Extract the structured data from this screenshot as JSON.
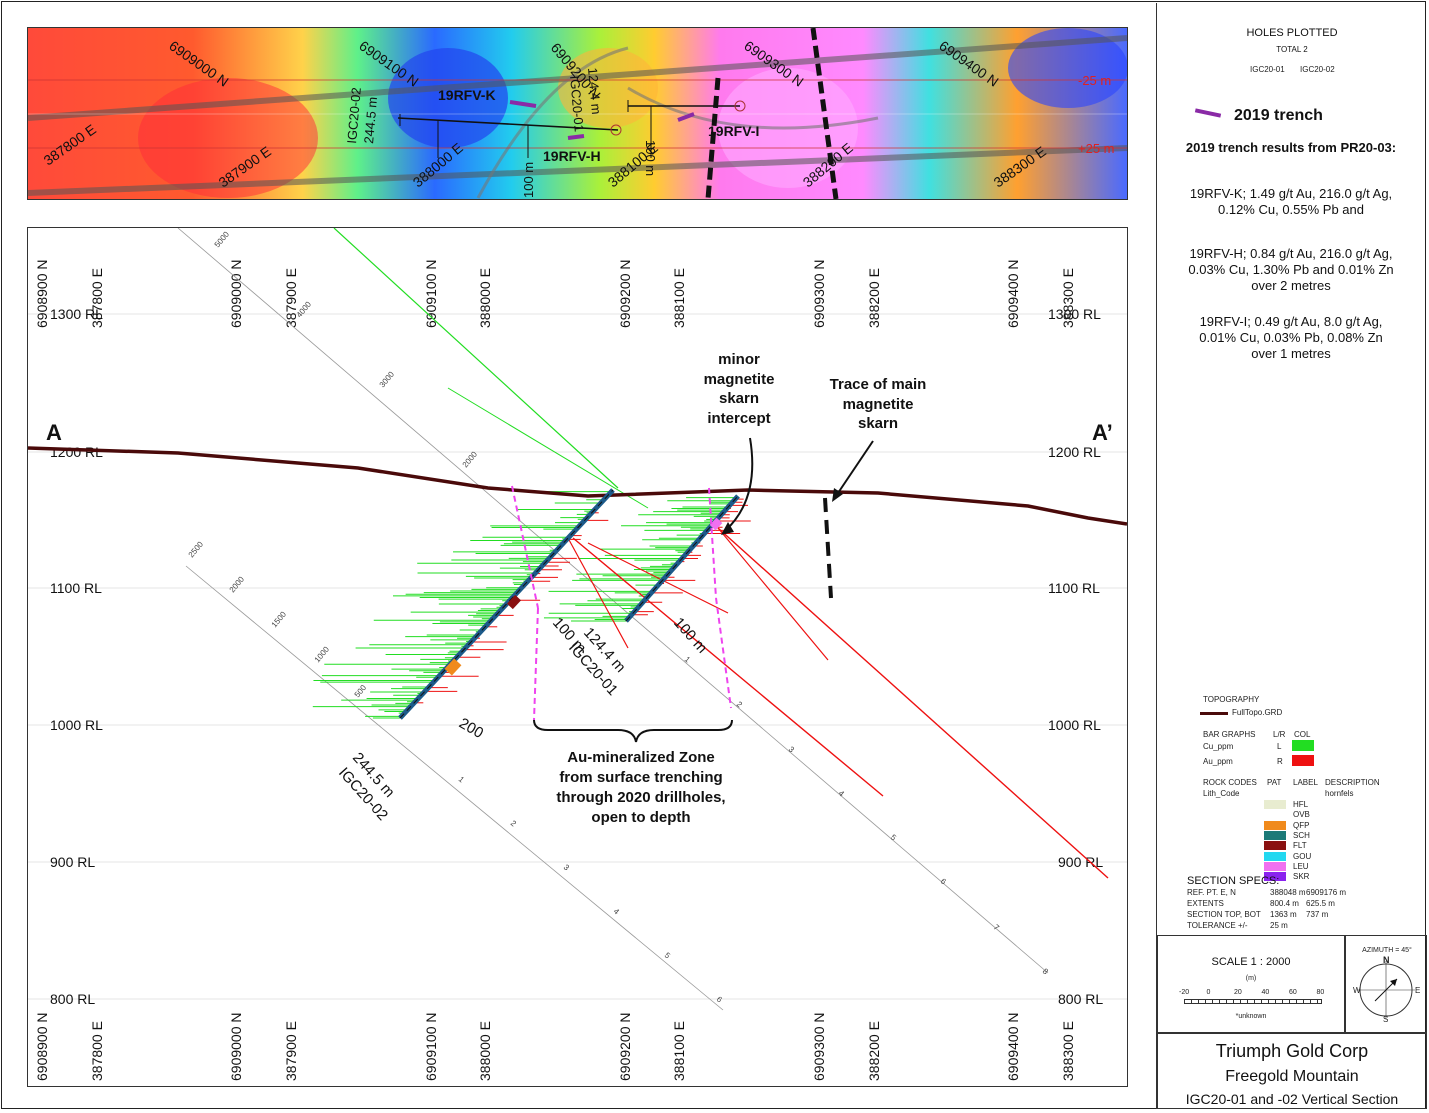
{
  "plan": {
    "northings": [
      "6909000 N",
      "6909100 N",
      "6909200 N",
      "6909300 N",
      "6909400 N"
    ],
    "eastings": [
      "387800 E",
      "387900 E",
      "388000 E",
      "388100 E",
      "388200 E",
      "388300 E"
    ],
    "rl_minus": "-25 m",
    "rl_plus": "+25 m",
    "trenches": [
      "19RFV-K",
      "19RFV-H",
      "19RFV-I"
    ],
    "hole02_name": "IGC20-02",
    "hole02_depth": "244.5 m",
    "hole01_name": "IGC20-01",
    "hole01_depth": "124.4 m",
    "hundred_m": "100 m"
  },
  "section": {
    "northings": [
      "6908900 N",
      "6909000 N",
      "6909100 N",
      "6909200 N",
      "6909300 N",
      "6909400 N"
    ],
    "eastings": [
      "387800 E",
      "387900 E",
      "388000 E",
      "388100 E",
      "388200 E",
      "388300 E"
    ],
    "rl_labels": [
      "1300 RL",
      "1200 RL",
      "1100 RL",
      "1000 RL",
      "900 RL",
      "800 RL"
    ],
    "label_a": "A",
    "label_a_prime": "A’",
    "hole01_depth": "124.4 m",
    "hole01_name": "IGC20-01",
    "hole02_depth": "244.5 m",
    "hole02_name": "IGC20-02",
    "hundred_m": "100 m",
    "depth_200": "200",
    "scale_ticks_1": [
      "5000",
      "4000",
      "3000",
      "2000"
    ],
    "scale_ticks_2": [
      "2500",
      "2000",
      "1500",
      "1000",
      "500"
    ],
    "scale_ticks_3": [
      "1",
      "2",
      "3",
      "4",
      "5",
      "6"
    ],
    "scale_ticks_4": [
      "1",
      "2",
      "3",
      "4",
      "5",
      "6",
      "7",
      "8"
    ],
    "annotation_skarn_minor": [
      "minor",
      "magnetite",
      "skarn",
      "intercept"
    ],
    "annotation_skarn_main": [
      "Trace of main",
      "magnetite",
      "skarn"
    ],
    "annotation_zone": [
      "Au-mineralized Zone",
      "from surface trenching",
      "through 2020 drillholes,",
      "open to depth"
    ]
  },
  "panel": {
    "holes_title": "HOLES PLOTTED",
    "holes_total": "TOTAL 2",
    "holes": [
      "IGC20-01",
      "IGC20-02"
    ],
    "trench_legend": "2019 trench",
    "results_title": "2019 trench results from PR20-03:",
    "result_k": "19RFV-K; 1.49 g/t Au, 216.0 g/t Ag, 0.12% Cu, 0.55% Pb and",
    "result_h": "19RFV-H; 0.84 g/t Au, 216.0 g/t Ag, 0.03% Cu, 1.30% Pb and 0.01% Zn over 2 metres",
    "result_i": "19RFV-I; 0.49 g/t Au, 8.0 g/t Ag, 0.01% Cu, 0.03% Pb, 0.08% Zn over 1 metres",
    "topo_title": "TOPOGRAPHY",
    "topo_item": "FullTopo.GRD",
    "bar_title": "BAR GRAPHS",
    "bar_lr": "L/R",
    "bar_col": "COL",
    "bar_items": [
      {
        "name": "Cu_ppm",
        "side": "L",
        "color": "#22dd22"
      },
      {
        "name": "Au_ppm",
        "side": "R",
        "color": "#ee1111"
      }
    ],
    "rock_title": "ROCK CODES",
    "rock_pat": "PAT",
    "rock_label": "LABEL",
    "rock_desc": "DESCRIPTION",
    "rock_code": "Lith_Code",
    "rock_desc_val": "hornfels",
    "rocks": [
      {
        "label": "HFL",
        "color": "#e8ecd0"
      },
      {
        "label": "OVB",
        "color": "#ffffff"
      },
      {
        "label": "QFP",
        "color": "#f08a1c"
      },
      {
        "label": "SCH",
        "color": "#1c7a78"
      },
      {
        "label": "FLT",
        "color": "#8a1010"
      },
      {
        "label": "GOU",
        "color": "#22d8f0"
      },
      {
        "label": "LEU",
        "color": "#f070f0"
      },
      {
        "label": "SKR",
        "color": "#8a22ee"
      }
    ],
    "specs_title": "SECTION  SPECS:",
    "specs": [
      {
        "k": "REF. PT.  E, N",
        "a": "388048 m",
        "b": "6909176 m"
      },
      {
        "k": "EXTENTS",
        "a": "800.4 m",
        "b": "625.5 m"
      },
      {
        "k": "SECTION TOP, BOT",
        "a": "1363 m",
        "b": "737 m"
      },
      {
        "k": "TOLERANCE  +/-",
        "a": "25 m",
        "b": ""
      }
    ],
    "scale_label": "SCALE  1 : 2000",
    "scale_unit": "(m)",
    "scale_ticks": [
      "-20",
      "0",
      "20",
      "40",
      "60",
      "80"
    ],
    "scale_note": "*unknown",
    "azimuth": "AZIMUTH = 45°",
    "compass": {
      "n": "N",
      "s": "S",
      "e": "E",
      "w": "W"
    },
    "company": "Triumph Gold Corp",
    "property": "Freegold Mountain",
    "section_title": "IGC20-01 and -02 Vertical Section"
  }
}
